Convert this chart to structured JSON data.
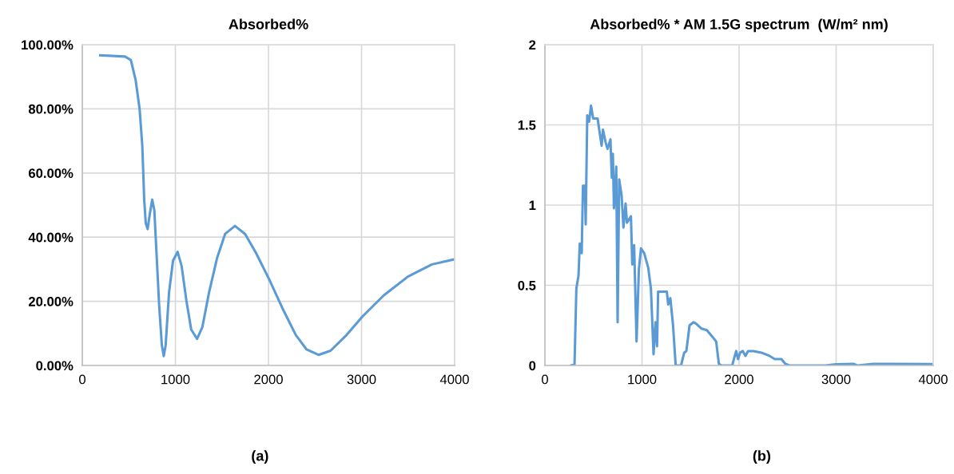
{
  "chart_data": [
    {
      "type": "line",
      "title": "Absorbed%",
      "annotations": [
        "(a)"
      ],
      "grid": true,
      "line_style": "solid",
      "marker": "none",
      "xlim": [
        0,
        4000
      ],
      "xticks": [
        0,
        1000,
        2000,
        3000,
        4000
      ],
      "ylim": [
        0,
        100
      ],
      "yticks": [
        {
          "value": 0,
          "label": "0.00%"
        },
        {
          "value": 20,
          "label": "20.00%"
        },
        {
          "value": 40,
          "label": "40.00%"
        },
        {
          "value": 60,
          "label": "60.00%"
        },
        {
          "value": 80,
          "label": "80.00%"
        },
        {
          "value": 100,
          "label": "100.00%"
        }
      ],
      "series": [
        {
          "color": "#5b9bd5",
          "x": [
            192,
            459,
            522,
            573,
            616,
            645,
            665,
            682,
            702,
            723,
            751,
            774,
            797,
            826,
            855,
            875,
            895,
            932,
            975,
            1024,
            1067,
            1118,
            1170,
            1233,
            1290,
            1362,
            1448,
            1534,
            1640,
            1749,
            1864,
            2007,
            2151,
            2294,
            2409,
            2538,
            2667,
            2839,
            3011,
            3240,
            3498,
            3756,
            4000
          ],
          "values": [
            96.7,
            96.3,
            95.2,
            89,
            79.9,
            68.3,
            51.7,
            44.3,
            42.5,
            46.8,
            51.7,
            48.4,
            35.2,
            18.6,
            6.2,
            2.9,
            6.2,
            22.8,
            32.7,
            35.4,
            31,
            20.3,
            11.2,
            8.3,
            12,
            22.8,
            33.5,
            41,
            43.5,
            41,
            35.2,
            26.9,
            17.8,
            9.5,
            5,
            3.3,
            4.6,
            9.5,
            15.3,
            21.9,
            27.7,
            31.5,
            33.1
          ]
        }
      ]
    },
    {
      "type": "line",
      "title": "Absorbed% * AM 1.5G spectrum  (W/m² nm)",
      "annotations": [
        "(b)"
      ],
      "grid": true,
      "line_style": "solid",
      "marker": "none",
      "xlim": [
        0,
        4000
      ],
      "xticks": [
        0,
        1000,
        2000,
        3000,
        4000
      ],
      "ylim": [
        0,
        2
      ],
      "yticks": [
        0,
        0.5,
        1,
        1.5,
        2
      ],
      "series": [
        {
          "color": "#5b9bd5",
          "x": [
            269,
            305,
            324,
            346,
            359,
            379,
            392,
            412,
            420,
            436,
            455,
            475,
            497,
            543,
            557,
            584,
            598,
            626,
            645,
            675,
            689,
            700,
            711,
            735,
            749,
            765,
            790,
            809,
            831,
            845,
            886,
            900,
            919,
            944,
            968,
            990,
            1023,
            1064,
            1092,
            1119,
            1139,
            1155,
            1166,
            1215,
            1256,
            1270,
            1292,
            1320,
            1347,
            1402,
            1435,
            1457,
            1490,
            1531,
            1558,
            1613,
            1668,
            1723,
            1764,
            1792,
            1819,
            1929,
            1970,
            1989,
            2011,
            2038,
            2066,
            2093,
            2148,
            2230,
            2313,
            2368,
            2436,
            2477,
            2519,
            2889,
            2999,
            3177,
            3218,
            3383,
            3602,
            4000
          ],
          "values": [
            0,
            0.007,
            0.48,
            0.56,
            0.76,
            0.7,
            1.12,
            1.12,
            0.88,
            1.56,
            1.52,
            1.62,
            1.54,
            1.54,
            1.48,
            1.37,
            1.47,
            1.39,
            1.35,
            1.41,
            1.17,
            1.32,
            0.98,
            1.24,
            0.27,
            1.16,
            1.06,
            0.86,
            1.01,
            0.89,
            0.93,
            0.63,
            0.75,
            0.15,
            0.6,
            0.73,
            0.7,
            0.61,
            0.48,
            0.07,
            0.27,
            0.12,
            0.46,
            0.46,
            0.46,
            0.38,
            0.42,
            0.25,
            0,
            0,
            0.08,
            0.09,
            0.25,
            0.27,
            0.26,
            0.23,
            0.22,
            0.18,
            0.15,
            0.01,
            0,
            0,
            0.09,
            0.04,
            0.08,
            0.09,
            0.06,
            0.09,
            0.09,
            0.08,
            0.06,
            0.04,
            0.04,
            0.01,
            0,
            0,
            0.007,
            0.01,
            0,
            0.01,
            0.01,
            0.008
          ]
        }
      ]
    }
  ]
}
